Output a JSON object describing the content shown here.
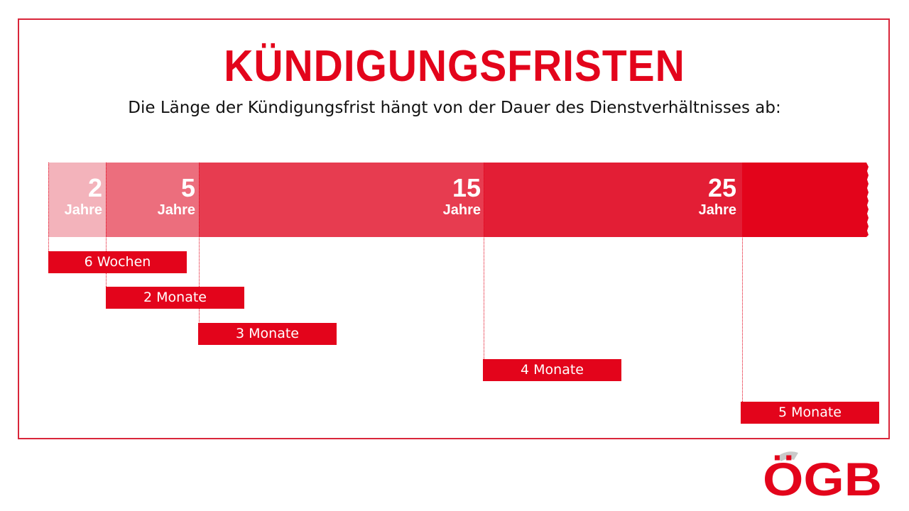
{
  "header": {
    "title": "KÜNDIGUNGSFRISTEN",
    "subtitle": "Die Länge der Kündigungsfrist hängt von der Dauer des Dienstverhältnisses ab:"
  },
  "timeline": {
    "unit": "Jahre",
    "milestones": [
      {
        "years": "2",
        "unit": "Jahre",
        "color": "#f3b3bb"
      },
      {
        "years": "5",
        "unit": "Jahre",
        "color": "#ec6e7d"
      },
      {
        "years": "15",
        "unit": "Jahre",
        "color": "#e73c50"
      },
      {
        "years": "25",
        "unit": "Jahre",
        "color": "#e31e35"
      }
    ],
    "end_color": "#e3041b"
  },
  "periods": [
    {
      "label": "6 Wochen"
    },
    {
      "label": "2 Monate"
    },
    {
      "label": "3 Monate"
    },
    {
      "label": "4 Monate"
    },
    {
      "label": "5 Monate"
    }
  ],
  "logo": {
    "text": "ÖGB",
    "color": "#e3041b"
  }
}
